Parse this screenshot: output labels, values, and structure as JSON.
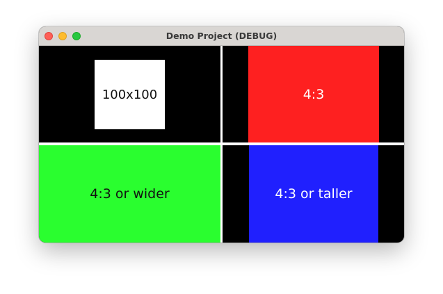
{
  "window": {
    "title": "Demo Project (DEBUG)"
  },
  "panes": {
    "top_left": {
      "label": "100x100",
      "color": "#ffffff"
    },
    "top_right": {
      "label": "4:3",
      "color": "#fe2020"
    },
    "bottom_left": {
      "label": "4:3 or wider",
      "color": "#2afe2f"
    },
    "bottom_right": {
      "label": "4:3 or taller",
      "color": "#2020fe"
    }
  },
  "icons": {
    "close": "close-icon",
    "minimize": "minimize-icon",
    "zoom": "zoom-icon"
  }
}
